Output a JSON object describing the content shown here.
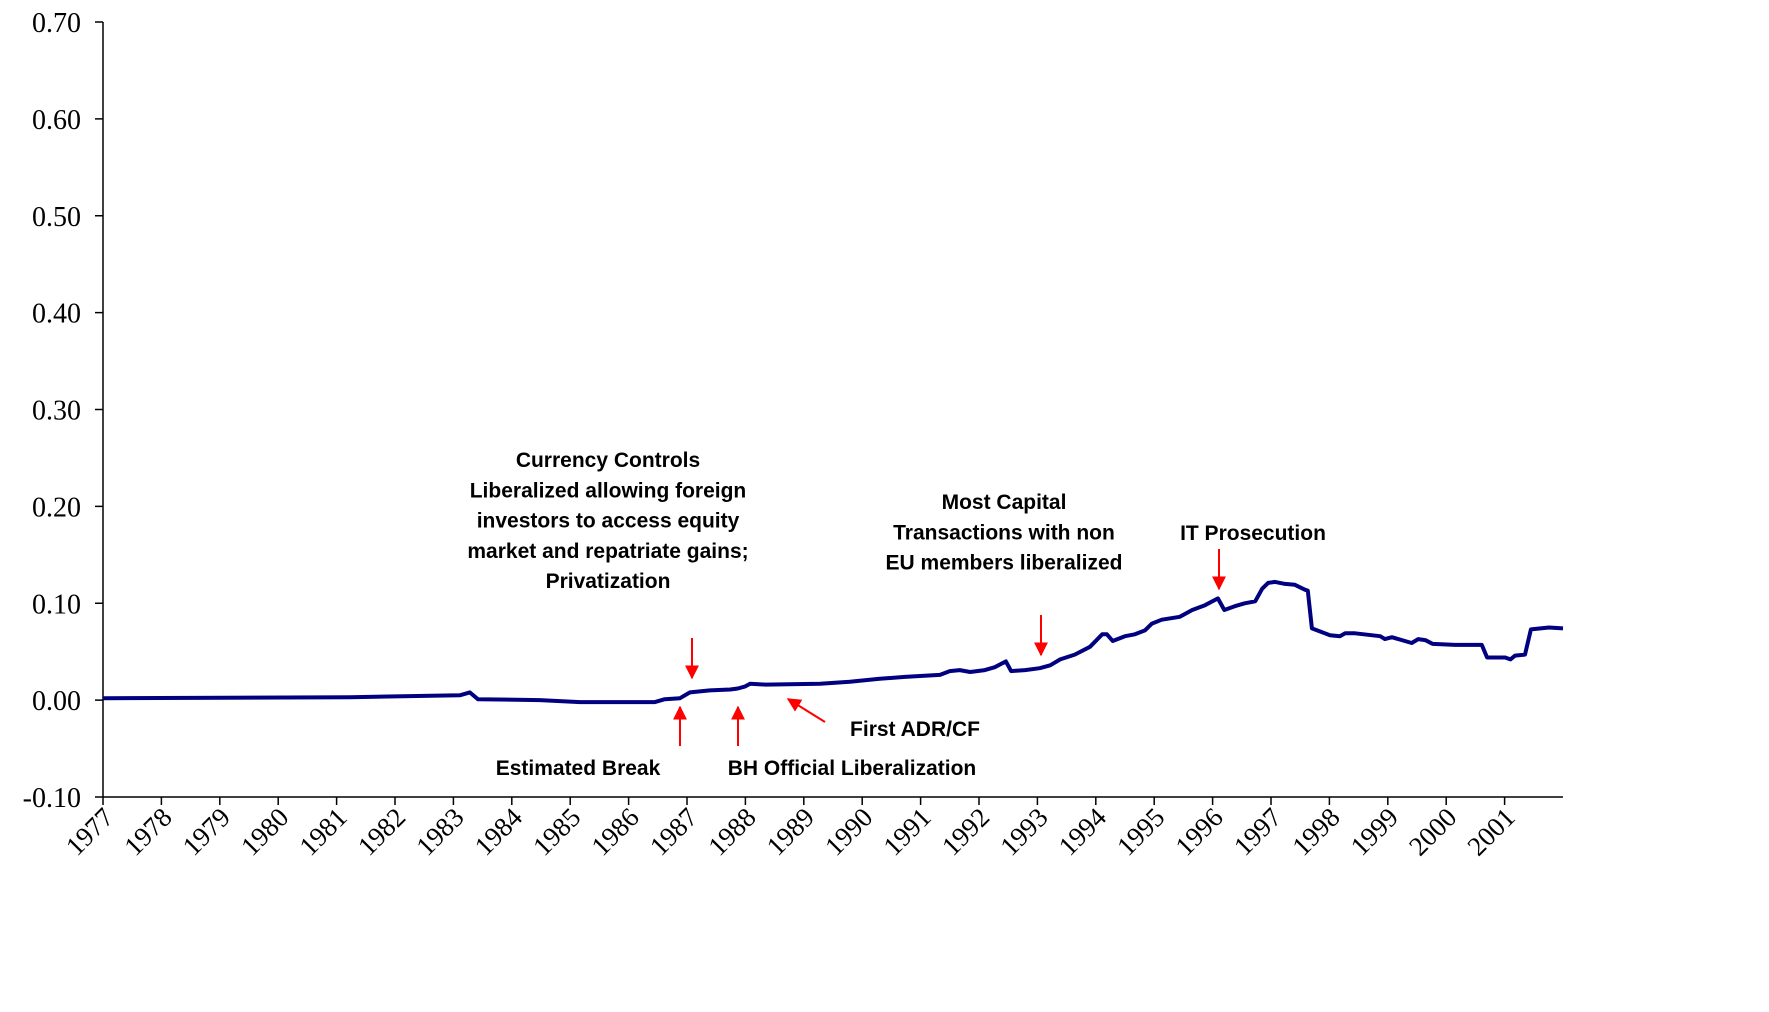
{
  "chart_data": {
    "type": "line",
    "x": [
      1977.0,
      1981.23,
      1983.11,
      1983.28,
      1983.42,
      1984.48,
      1985.17,
      1986.45,
      1986.62,
      1986.88,
      1987.05,
      1987.39,
      1987.74,
      1987.87,
      1987.99,
      1988.08,
      1988.34,
      1989.28,
      1989.79,
      1990.3,
      1990.73,
      1991.33,
      1991.5,
      1991.67,
      1991.85,
      1992.1,
      1992.27,
      1992.46,
      1992.55,
      1992.79,
      1993.04,
      1993.22,
      1993.39,
      1993.64,
      1993.9,
      1994.11,
      1994.19,
      1994.29,
      1994.5,
      1994.67,
      1994.84,
      1994.96,
      1995.13,
      1995.44,
      1995.65,
      1995.87,
      1996.09,
      1996.2,
      1996.38,
      1996.55,
      1996.73,
      1996.85,
      1996.95,
      1997.07,
      1997.24,
      1997.41,
      1997.58,
      1997.63,
      1997.7,
      1998.01,
      1998.18,
      1998.27,
      1998.44,
      1998.87,
      1998.95,
      1999.07,
      1999.41,
      1999.52,
      1999.64,
      1999.77,
      2000.15,
      2000.61,
      2000.7,
      2001.01,
      2001.1,
      2001.18,
      2001.35,
      2001.45,
      2001.76,
      2002.0
    ],
    "series": [
      {
        "color": "#000080",
        "values": [
          0.002,
          0.003,
          0.005,
          0.008,
          0.001,
          0.0,
          -0.002,
          -0.002,
          0.001,
          0.002,
          0.008,
          0.01,
          0.011,
          0.012,
          0.014,
          0.017,
          0.016,
          0.017,
          0.019,
          0.022,
          0.024,
          0.026,
          0.03,
          0.031,
          0.029,
          0.031,
          0.034,
          0.04,
          0.03,
          0.031,
          0.033,
          0.036,
          0.042,
          0.047,
          0.055,
          0.068,
          0.068,
          0.061,
          0.066,
          0.068,
          0.072,
          0.079,
          0.083,
          0.086,
          0.093,
          0.098,
          0.105,
          0.093,
          0.097,
          0.1,
          0.102,
          0.115,
          0.121,
          0.122,
          0.12,
          0.119,
          0.114,
          0.113,
          0.074,
          0.067,
          0.066,
          0.069,
          0.069,
          0.066,
          0.063,
          0.065,
          0.059,
          0.063,
          0.062,
          0.058,
          0.057,
          0.057,
          0.044,
          0.044,
          0.042,
          0.046,
          0.047,
          0.073,
          0.075,
          0.074
        ]
      }
    ],
    "xlim": [
      1977,
      2002
    ],
    "xticks": [
      1977,
      1978,
      1979,
      1980,
      1981,
      1982,
      1983,
      1984,
      1985,
      1986,
      1987,
      1988,
      1989,
      1990,
      1991,
      1992,
      1993,
      1994,
      1995,
      1996,
      1997,
      1998,
      1999,
      2000,
      2001
    ],
    "ylim": [
      -0.1,
      0.7
    ],
    "yticks": [
      {
        "value": 0.7,
        "label": "0.70"
      },
      {
        "value": 0.6,
        "label": "0.60"
      },
      {
        "value": 0.5,
        "label": "0.50"
      },
      {
        "value": 0.4,
        "label": "0.40"
      },
      {
        "value": 0.3,
        "label": "0.30"
      },
      {
        "value": 0.2,
        "label": "0.20"
      },
      {
        "value": 0.1,
        "label": "0.10"
      },
      {
        "value": 0.0,
        "label": "0.00"
      },
      {
        "value": -0.1,
        "label": "-0.10"
      }
    ],
    "annotations": [
      {
        "text": [
          "Currency Controls",
          "Liberalized allowing foreign",
          "investors to access equity",
          "market and repatriate gains;",
          "Privatization"
        ]
      },
      {
        "text": [
          "Estimated Break"
        ]
      },
      {
        "text": [
          "BH Official Liberalization"
        ]
      },
      {
        "text": [
          "First ADR/CF"
        ]
      },
      {
        "text": [
          "Most Capital",
          "Transactions with non",
          "EU members liberalized"
        ]
      },
      {
        "text": [
          "IT Prosecution"
        ]
      }
    ]
  }
}
